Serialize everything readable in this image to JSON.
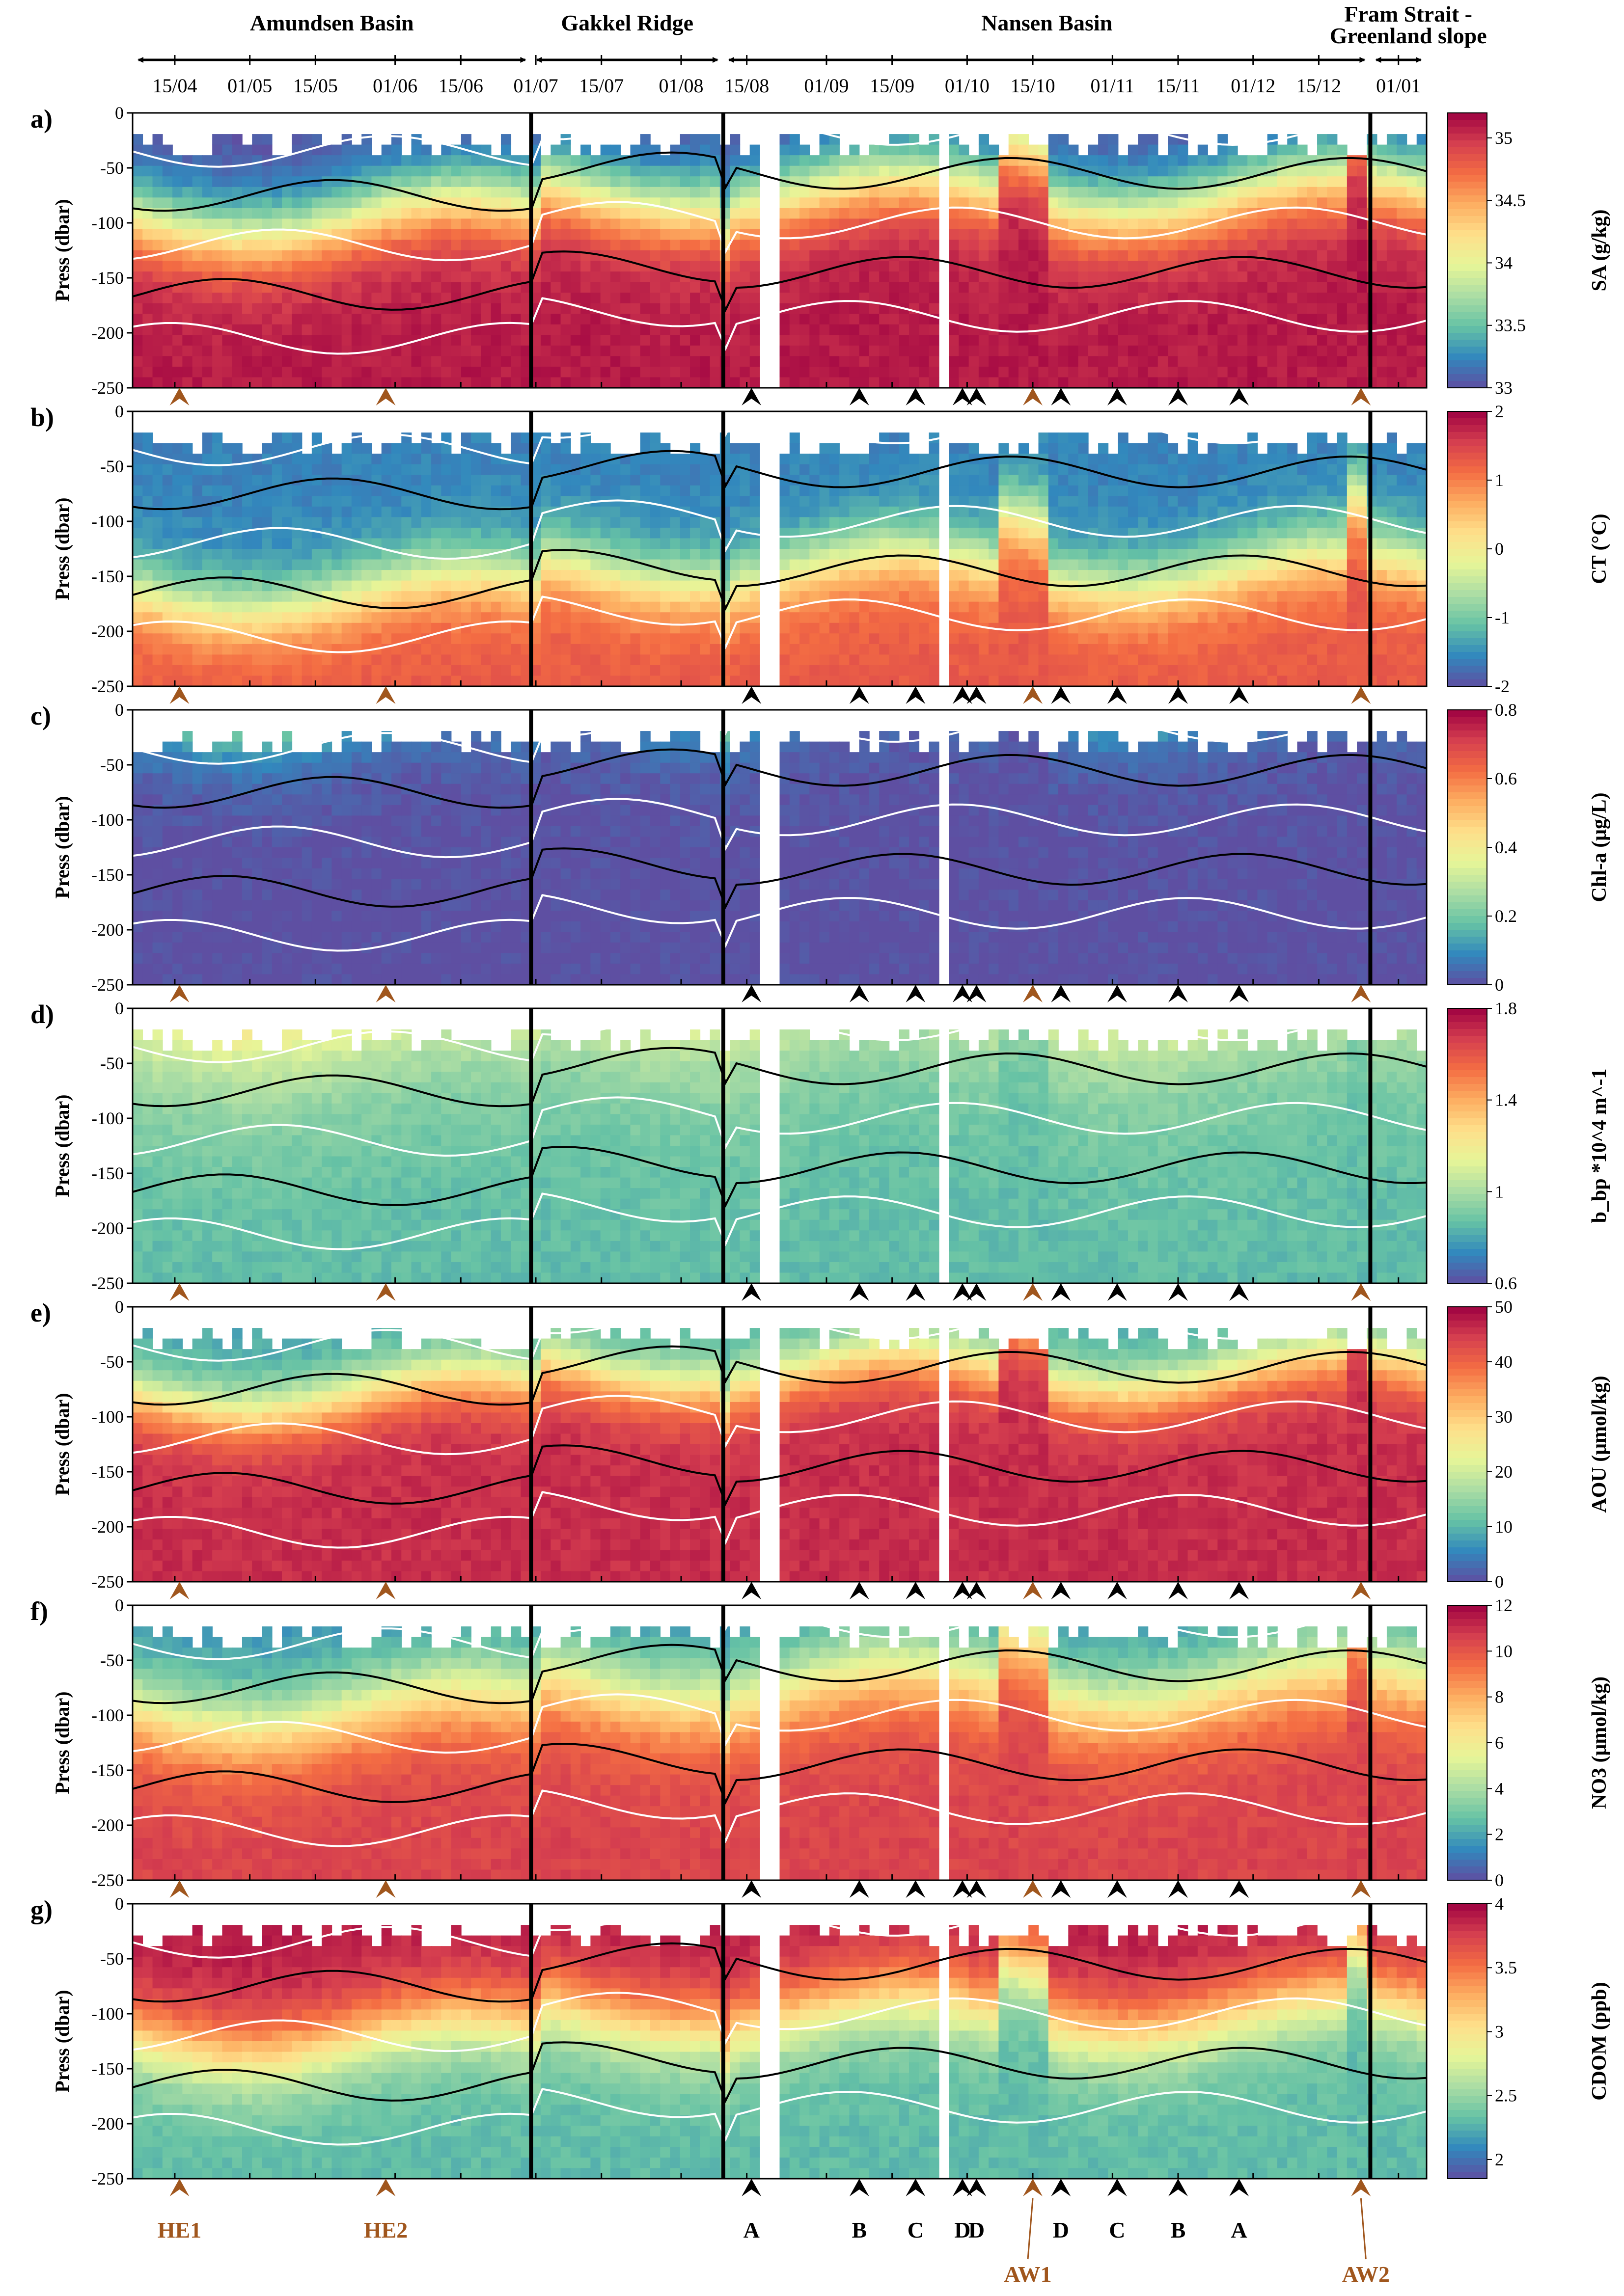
{
  "regions": [
    {
      "label": "Amundsen Basin",
      "start": "2020-04-06",
      "end": "2020-06-30"
    },
    {
      "label": "Gakkel Ridge",
      "start": "2020-06-30",
      "end": "2020-08-10"
    },
    {
      "label": "Nansen Basin",
      "start": "2020-08-10",
      "end": "2020-12-26"
    },
    {
      "label": "Fram Strait -",
      "label2": "Greenland slope",
      "start": "2020-12-26",
      "end": "2021-01-07"
    }
  ],
  "date_ticks": [
    {
      "label": "15/04",
      "date": "2020-04-15"
    },
    {
      "label": "01/05",
      "date": "2020-05-01"
    },
    {
      "label": "15/05",
      "date": "2020-05-15"
    },
    {
      "label": "01/06",
      "date": "2020-06-01"
    },
    {
      "label": "15/06",
      "date": "2020-06-15"
    },
    {
      "label": "01/07",
      "date": "2020-07-01"
    },
    {
      "label": "15/07",
      "date": "2020-07-15"
    },
    {
      "label": "01/08",
      "date": "2020-08-01"
    },
    {
      "label": "15/08",
      "date": "2020-08-15"
    },
    {
      "label": "01/09",
      "date": "2020-09-01"
    },
    {
      "label": "15/09",
      "date": "2020-09-15"
    },
    {
      "label": "01/10",
      "date": "2020-10-01"
    },
    {
      "label": "15/10",
      "date": "2020-10-15"
    },
    {
      "label": "01/11",
      "date": "2020-11-01"
    },
    {
      "label": "15/11",
      "date": "2020-11-15"
    },
    {
      "label": "01/12",
      "date": "2020-12-01"
    },
    {
      "label": "15/12",
      "date": "2020-12-15"
    },
    {
      "label": "01/01",
      "date": "2021-01-01"
    }
  ],
  "events": [
    {
      "label": "HE1",
      "date": "2020-04-16",
      "kind": "eddy"
    },
    {
      "label": "HE2",
      "date": "2020-05-30",
      "kind": "eddy"
    },
    {
      "label": "A",
      "date": "2020-08-16",
      "kind": "feature"
    },
    {
      "label": "B",
      "date": "2020-09-08",
      "kind": "feature"
    },
    {
      "label": "C",
      "date": "2020-09-20",
      "kind": "feature"
    },
    {
      "label": "D",
      "date": "2020-09-30",
      "kind": "feature"
    },
    {
      "label": "D",
      "date": "2020-10-03",
      "kind": "feature"
    },
    {
      "label": "AW1",
      "date": "2020-10-15",
      "kind": "eddy"
    },
    {
      "label": "D",
      "date": "2020-10-21",
      "kind": "feature"
    },
    {
      "label": "C",
      "date": "2020-11-02",
      "kind": "feature"
    },
    {
      "label": "B",
      "date": "2020-11-15",
      "kind": "feature"
    },
    {
      "label": "A",
      "date": "2020-11-28",
      "kind": "feature"
    },
    {
      "label": "AW2",
      "date": "2020-12-24",
      "kind": "eddy"
    }
  ],
  "event_colors": {
    "eddy": "#a0561d",
    "feature": "#000000"
  },
  "chart_data": [
    {
      "type": "heatmap",
      "panel": "a)",
      "variable": "SA",
      "cblabel": "SA (g/kg)",
      "ylabel": "Press (dbar)",
      "ylim": [
        -250,
        0
      ],
      "yticks": [
        0,
        -50,
        -100,
        -150,
        -200,
        -250
      ],
      "clim": [
        33,
        35.2
      ],
      "cbticks": [
        {
          "v": 35,
          "t": "35"
        },
        {
          "v": 34.5,
          "t": "34.5"
        },
        {
          "v": 34,
          "t": "34"
        },
        {
          "v": 33.5,
          "t": "33.5"
        },
        {
          "v": 33,
          "t": "33"
        }
      ],
      "surface": 33.0,
      "deep": 35.1,
      "profile": "tanh",
      "d0": 95,
      "scale": 45
    },
    {
      "type": "heatmap",
      "panel": "b)",
      "variable": "CT",
      "cblabel": "CT (°C)",
      "ylabel": "Press (dbar)",
      "ylim": [
        -250,
        0
      ],
      "yticks": [
        0,
        -50,
        -100,
        -150,
        -200,
        -250
      ],
      "clim": [
        -2,
        2
      ],
      "cbticks": [
        {
          "v": 2,
          "t": "2"
        },
        {
          "v": 1,
          "t": "1"
        },
        {
          "v": 0,
          "t": "0"
        },
        {
          "v": -1,
          "t": "-1"
        },
        {
          "v": -2,
          "t": "-2"
        }
      ],
      "surface": -1.6,
      "deep": 1.3,
      "profile": "tanh",
      "d0": 165,
      "scale": 40
    },
    {
      "type": "heatmap",
      "panel": "c)",
      "variable": "Chl-a",
      "cblabel": "Chl-a (μg/L)",
      "ylabel": "Press (dbar)",
      "ylim": [
        -250,
        0
      ],
      "yticks": [
        0,
        -50,
        -100,
        -150,
        -200,
        -250
      ],
      "clim": [
        0,
        0.8
      ],
      "cbticks": [
        {
          "v": 0.8,
          "t": "0.8"
        },
        {
          "v": 0.6,
          "t": "0.6"
        },
        {
          "v": 0.4,
          "t": "0.4"
        },
        {
          "v": 0.2,
          "t": "0.2"
        },
        {
          "v": 0,
          "t": "0"
        }
      ],
      "surface": 0.25,
      "deep": 0.0,
      "profile": "exp",
      "d0": 40,
      "scale": 30
    },
    {
      "type": "heatmap",
      "panel": "d)",
      "variable": "bbp",
      "cblabel": "b_bp *10^4 m^-1",
      "ylabel": "Press (dbar)",
      "ylim": [
        -250,
        0
      ],
      "yticks": [
        0,
        -50,
        -100,
        -150,
        -200,
        -250
      ],
      "clim": [
        0.6,
        1.8
      ],
      "cbticks": [
        {
          "v": 1.8,
          "t": "1.8"
        },
        {
          "v": 1.4,
          "t": "1.4"
        },
        {
          "v": 1,
          "t": "1"
        },
        {
          "v": 0.6,
          "t": "0.6"
        }
      ],
      "surface": 1.25,
      "deep": 0.85,
      "profile": "exp",
      "d0": 40,
      "scale": 60
    },
    {
      "type": "heatmap",
      "panel": "e)",
      "variable": "AOU",
      "cblabel": "AOU (μmol/kg)",
      "ylabel": "Press (dbar)",
      "ylim": [
        -250,
        0
      ],
      "yticks": [
        0,
        -50,
        -100,
        -150,
        -200,
        -250
      ],
      "clim": [
        0,
        50
      ],
      "cbticks": [
        {
          "v": 50,
          "t": "50"
        },
        {
          "v": 40,
          "t": "40"
        },
        {
          "v": 30,
          "t": "30"
        },
        {
          "v": 20,
          "t": "20"
        },
        {
          "v": 10,
          "t": "10"
        },
        {
          "v": 0,
          "t": "0"
        }
      ],
      "surface": 8,
      "deep": 46,
      "profile": "tanh",
      "d0": 80,
      "scale": 35
    },
    {
      "type": "heatmap",
      "panel": "f)",
      "variable": "NO3",
      "cblabel": "NO3 (μmol/kg)",
      "ylabel": "Press (dbar)",
      "ylim": [
        -250,
        0
      ],
      "yticks": [
        0,
        -50,
        -100,
        -150,
        -200,
        -250
      ],
      "clim": [
        0,
        12
      ],
      "cbticks": [
        {
          "v": 12,
          "t": "12"
        },
        {
          "v": 10,
          "t": "10"
        },
        {
          "v": 8,
          "t": "8"
        },
        {
          "v": 6,
          "t": "6"
        },
        {
          "v": 4,
          "t": "4"
        },
        {
          "v": 2,
          "t": "2"
        },
        {
          "v": 0,
          "t": "0"
        }
      ],
      "surface": 1.5,
      "deep": 10.5,
      "profile": "tanh",
      "d0": 95,
      "scale": 50
    },
    {
      "type": "heatmap",
      "panel": "g)",
      "variable": "CDOM",
      "cblabel": "CDOM (ppb)",
      "ylabel": "Press (dbar)",
      "ylim": [
        -250,
        0
      ],
      "yticks": [
        0,
        -50,
        -100,
        -150,
        -200,
        -250
      ],
      "clim": [
        1.85,
        4
      ],
      "cbticks": [
        {
          "v": 4,
          "t": "4"
        },
        {
          "v": 3.5,
          "t": "3.5"
        },
        {
          "v": 3,
          "t": "3"
        },
        {
          "v": 2.5,
          "t": "2.5"
        },
        {
          "v": 2,
          "t": "2"
        }
      ],
      "surface": 3.9,
      "deep": 2.3,
      "profile": "tanh",
      "d0": 120,
      "scale": 45
    }
  ],
  "isopycnal_contours": {
    "depths": [
      35,
      75,
      120,
      165,
      205
    ],
    "color": "#ffffff",
    "secondary_color": "#000000"
  },
  "colormap": [
    "#5e4fa2",
    "#3288bd",
    "#66c2a5",
    "#abdda4",
    "#e6f598",
    "#fee08b",
    "#fdae61",
    "#f46d43",
    "#d53e4f",
    "#9e0142"
  ]
}
